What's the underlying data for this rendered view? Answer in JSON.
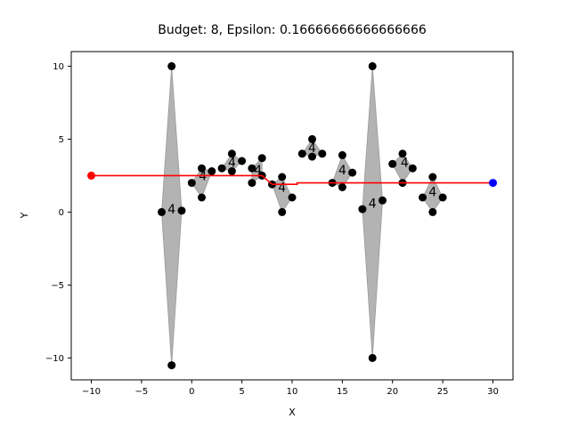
{
  "chart_data": {
    "type": "scatter",
    "title": "Budget: 8, Epsilon: 0.16666666666666666",
    "xlabel": "X",
    "ylabel": "Y",
    "xlim": [
      -12,
      32
    ],
    "ylim": [
      -11.5,
      11
    ],
    "xticks": [
      -10,
      -5,
      0,
      5,
      10,
      15,
      20,
      25,
      30
    ],
    "yticks": [
      -10,
      -5,
      0,
      5,
      10
    ],
    "grid": false,
    "colors": {
      "points": "#000000",
      "region_fill": "#b3b3b3",
      "region_edge": "#999999",
      "path": "#ff0000",
      "start": "#ff0000",
      "goal": "#0000ff"
    },
    "regions": [
      {
        "label": "4",
        "polygon": [
          [
            -3,
            0
          ],
          [
            -2,
            10
          ],
          [
            -1,
            0.1
          ],
          [
            -2,
            -10.5
          ]
        ],
        "label_at": [
          -2,
          0.2
        ]
      },
      {
        "label": "4",
        "polygon": [
          [
            0,
            2
          ],
          [
            1,
            3
          ],
          [
            2,
            2.8
          ],
          [
            1,
            1
          ]
        ],
        "label_at": [
          1.1,
          2.5
        ]
      },
      {
        "label": "4",
        "polygon": [
          [
            3,
            3
          ],
          [
            4,
            4
          ],
          [
            5,
            3.5
          ],
          [
            4,
            2.8
          ]
        ],
        "label_at": [
          4,
          3.4
        ]
      },
      {
        "label": "4",
        "polygon": [
          [
            6,
            3
          ],
          [
            7,
            3.7
          ],
          [
            7,
            2.5
          ],
          [
            6,
            2
          ]
        ],
        "label_at": [
          6.6,
          2.9
        ]
      },
      {
        "label": "4",
        "polygon": [
          [
            8,
            1.9
          ],
          [
            9,
            2.4
          ],
          [
            10,
            1
          ],
          [
            9,
            0
          ]
        ],
        "label_at": [
          9,
          1.7
        ]
      },
      {
        "label": "4",
        "polygon": [
          [
            11,
            4
          ],
          [
            12,
            5
          ],
          [
            13,
            4
          ],
          [
            12,
            3.8
          ]
        ],
        "label_at": [
          12,
          4.4
        ]
      },
      {
        "label": "4",
        "polygon": [
          [
            14,
            2
          ],
          [
            15,
            3.9
          ],
          [
            16,
            2.7
          ],
          [
            15,
            1.7
          ]
        ],
        "label_at": [
          15,
          2.9
        ]
      },
      {
        "label": "4",
        "polygon": [
          [
            17,
            0.2
          ],
          [
            18,
            10
          ],
          [
            19,
            0.8
          ],
          [
            18,
            -10
          ]
        ],
        "label_at": [
          18,
          0.6
        ]
      },
      {
        "label": "4",
        "polygon": [
          [
            20,
            3.3
          ],
          [
            21,
            4
          ],
          [
            22,
            3
          ],
          [
            21,
            2
          ]
        ],
        "label_at": [
          21.2,
          3.4
        ]
      },
      {
        "label": "4",
        "polygon": [
          [
            23,
            1
          ],
          [
            24,
            2.4
          ],
          [
            25,
            1
          ],
          [
            24,
            0
          ]
        ],
        "label_at": [
          24,
          1.4
        ]
      }
    ],
    "points": [
      [
        -3,
        0
      ],
      [
        -2,
        10
      ],
      [
        -1,
        0.1
      ],
      [
        -2,
        -10.5
      ],
      [
        0,
        2
      ],
      [
        1,
        3
      ],
      [
        2,
        2.8
      ],
      [
        1,
        1
      ],
      [
        3,
        3
      ],
      [
        4,
        4
      ],
      [
        5,
        3.5
      ],
      [
        4,
        2.8
      ],
      [
        6,
        3
      ],
      [
        7,
        3.7
      ],
      [
        7,
        2.5
      ],
      [
        6,
        2
      ],
      [
        8,
        1.9
      ],
      [
        9,
        2.4
      ],
      [
        10,
        1
      ],
      [
        9,
        0
      ],
      [
        11,
        4
      ],
      [
        12,
        5
      ],
      [
        13,
        4
      ],
      [
        12,
        3.8
      ],
      [
        14,
        2
      ],
      [
        15,
        3.9
      ],
      [
        16,
        2.7
      ],
      [
        15,
        1.7
      ],
      [
        17,
        0.2
      ],
      [
        18,
        10
      ],
      [
        19,
        0.8
      ],
      [
        18,
        -10
      ],
      [
        20,
        3.3
      ],
      [
        21,
        4
      ],
      [
        22,
        3
      ],
      [
        21,
        2
      ],
      [
        23,
        1
      ],
      [
        24,
        2.4
      ],
      [
        25,
        1
      ],
      [
        24,
        0
      ]
    ],
    "path": [
      [
        -10,
        2.5
      ],
      [
        7,
        2.5
      ],
      [
        8,
        1.9
      ],
      [
        10.5,
        1.9
      ],
      [
        10.5,
        2.0
      ],
      [
        30,
        2.0
      ]
    ],
    "start": [
      -10,
      2.5
    ],
    "goal": [
      30,
      2.0
    ]
  }
}
